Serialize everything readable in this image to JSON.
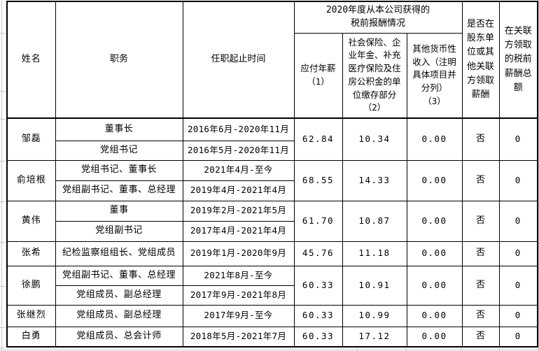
{
  "colors": {
    "table_border": "#000000",
    "text": "#000000",
    "background": "#ffffff",
    "sheet_gridline": "#c6c6c6"
  },
  "table": {
    "header": {
      "name": "姓名",
      "position": "职务",
      "tenure": "任职起止时间",
      "comp_group": "2020年度从本公司获得的\n税前报酬情况",
      "salary": "应付年薪\n（1）",
      "insurance": "社会保险、企业年金、补充医疗保险及住房公积金的单位缴存部分\n（2）",
      "other_income": "其他货币性收入（注明具体项目并分列）\n（3）",
      "related_party_paid": "是否在股东单位或其他关联方领取薪酬",
      "related_party_total": "在关联方领取的税前薪酬总额"
    },
    "rows": [
      {
        "name": "邹磊",
        "positions": [
          {
            "title": "董事长",
            "tenure": "2016年6月-2020年11月"
          },
          {
            "title": "党组书记",
            "tenure": "2016年5月-2020年11月"
          }
        ],
        "salary": "62.84",
        "insurance": "10.34",
        "other_income": "0.00",
        "related_party_paid": "否",
        "related_party_total": "0"
      },
      {
        "name": "俞培根",
        "positions": [
          {
            "title": "党组书记、董事长",
            "tenure": "2021年4月-至今"
          },
          {
            "title": "党组副书记、董事、总经理",
            "tenure": "2019年4月-2021年4月"
          }
        ],
        "salary": "68.55",
        "insurance": "14.33",
        "other_income": "0.00",
        "related_party_paid": "否",
        "related_party_total": "0"
      },
      {
        "name": "黄伟",
        "positions": [
          {
            "title": "董事",
            "tenure": "2019年2月-2021年5月"
          },
          {
            "title": "党组副书记",
            "tenure": "2017年4月-2021年4月"
          }
        ],
        "salary": "61.70",
        "insurance": "10.87",
        "other_income": "0.00",
        "related_party_paid": "否",
        "related_party_total": "0"
      },
      {
        "name": "张希",
        "positions": [
          {
            "title": "纪检监察组组长、党组成员",
            "tenure": "2019年1月-2020年9月"
          }
        ],
        "salary": "45.76",
        "insurance": "11.18",
        "other_income": "0.00",
        "related_party_paid": "否",
        "related_party_total": "0"
      },
      {
        "name": "徐鹏",
        "positions": [
          {
            "title": "党组副书记、董事、总经理",
            "tenure": "2021年8月-至今"
          },
          {
            "title": "党组成员、副总经理",
            "tenure": "2017年9月-2021年8月"
          }
        ],
        "salary": "60.33",
        "insurance": "10.91",
        "other_income": "0.00",
        "related_party_paid": "否",
        "related_party_total": "0"
      },
      {
        "name": "张继烈",
        "positions": [
          {
            "title": "党组成员、副总经理",
            "tenure": "2017年9月-至今"
          }
        ],
        "salary": "60.33",
        "insurance": "10.99",
        "other_income": "0.00",
        "related_party_paid": "否",
        "related_party_total": "0"
      },
      {
        "name": "白勇",
        "positions": [
          {
            "title": "党组成员、总会计师",
            "tenure": "2018年5月-2021年7月"
          }
        ],
        "salary": "60.33",
        "insurance": "17.12",
        "other_income": "0.00",
        "related_party_paid": "否",
        "related_party_total": "0"
      }
    ]
  }
}
